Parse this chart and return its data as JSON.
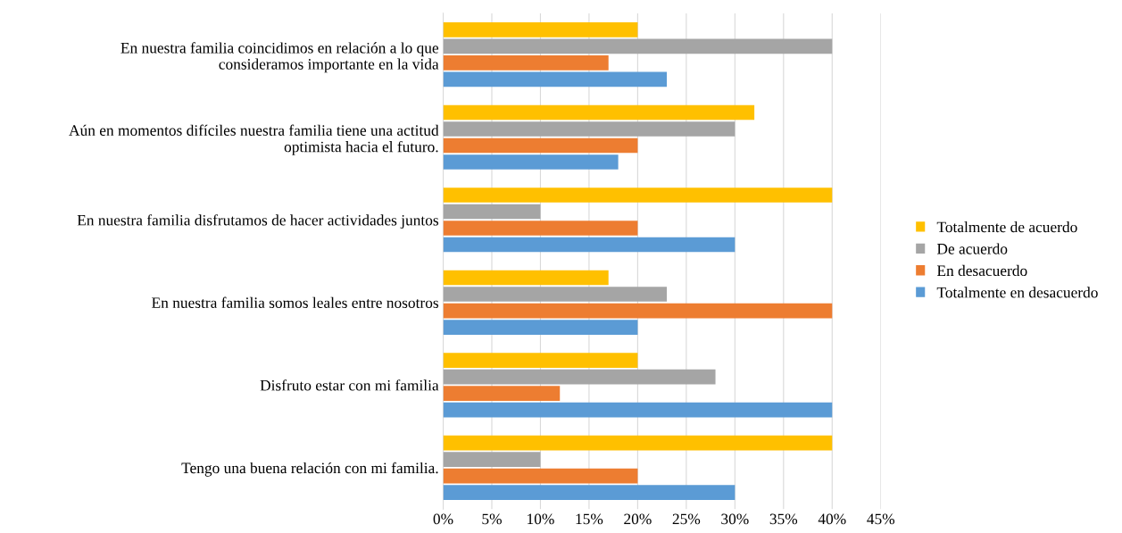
{
  "chart_data": {
    "type": "bar",
    "orientation": "horizontal",
    "categories": [
      "En nuestra familia coincidimos en relación a lo que\nconsideramos importante en la vida",
      "Aún en momentos difíciles nuestra familia tiene una actitud\noptimista hacia el futuro.",
      "En nuestra familia disfrutamos de hacer actividades juntos",
      "En nuestra familia somos leales entre nosotros",
      "Disfruto estar con mi familia",
      "Tengo una buena relación con mi familia."
    ],
    "series": [
      {
        "name": "Totalmente en desacuerdo",
        "color": "#5b9bd5",
        "values": [
          23,
          18,
          30,
          20,
          40,
          30
        ]
      },
      {
        "name": "En desacuerdo",
        "color": "#ed7d31",
        "values": [
          17,
          20,
          20,
          40,
          12,
          20
        ]
      },
      {
        "name": "De acuerdo",
        "color": "#a5a5a5",
        "values": [
          40,
          30,
          10,
          23,
          28,
          10
        ]
      },
      {
        "name": "Totalmente de acuerdo",
        "color": "#ffc000",
        "values": [
          20,
          32,
          40,
          17,
          20,
          40
        ]
      }
    ],
    "xlim": [
      0,
      45
    ],
    "xticks": [
      {
        "value": 0,
        "label": "0%"
      },
      {
        "value": 5,
        "label": "5%"
      },
      {
        "value": 10,
        "label": "10%"
      },
      {
        "value": 15,
        "label": "15%"
      },
      {
        "value": 20,
        "label": "20%"
      },
      {
        "value": 25,
        "label": "25%"
      },
      {
        "value": 30,
        "label": "30%"
      },
      {
        "value": 35,
        "label": "35%"
      },
      {
        "value": 40,
        "label": "40%"
      },
      {
        "value": 45,
        "label": "45%"
      }
    ],
    "grid": "x",
    "legend": "right"
  }
}
